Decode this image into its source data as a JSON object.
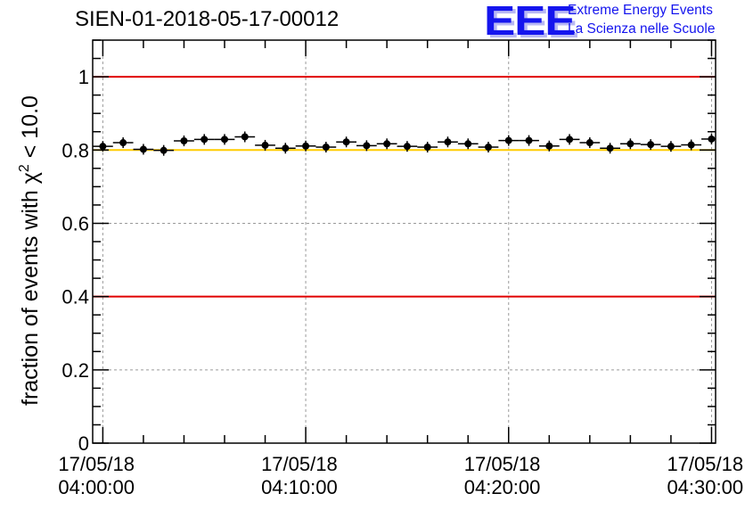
{
  "header": {
    "title": "SIEN-01-2018-05-17-00012",
    "logo_mark": "EEE",
    "logo_line1": "Extreme Energy Events",
    "logo_line2": "La Scienza nelle Scuole"
  },
  "chart_data": {
    "type": "scatter",
    "title": "SIEN-01-2018-05-17-00012",
    "ylabel": "fraction of events with χ² < 10.0",
    "ylabel_main": "fraction of events with ",
    "ylabel_symbol": "χ",
    "ylabel_sup": "2",
    "ylabel_tail": " < 10.0",
    "xlabel": "",
    "ylim": [
      0,
      1.1
    ],
    "xlim_minutes": [
      -0.5,
      30.2
    ],
    "grid": true,
    "y_ticks": [
      0,
      0.2,
      0.4,
      0.6,
      0.8,
      1
    ],
    "y_tick_labels": [
      "0",
      "0.2",
      "0.4",
      "0.6",
      "0.8",
      "1"
    ],
    "x_ticks": [
      {
        "minute": 0,
        "date": "17/05/18",
        "time": "04:00:00"
      },
      {
        "minute": 10,
        "date": "17/05/18",
        "time": "04:10:00"
      },
      {
        "minute": 20,
        "date": "17/05/18",
        "time": "04:20:00"
      },
      {
        "minute": 30,
        "date": "17/05/18",
        "time": "04:30:00"
      }
    ],
    "reference_lines": [
      {
        "y": 1.0,
        "color": "#e00000"
      },
      {
        "y": 0.8,
        "color": "#ffcc00"
      },
      {
        "y": 0.4,
        "color": "#e00000"
      }
    ],
    "series": [
      {
        "marker_color": "#000000",
        "points": [
          {
            "minute": 0.0,
            "y": 0.81
          },
          {
            "minute": 1.0,
            "y": 0.82
          },
          {
            "minute": 2.0,
            "y": 0.802
          },
          {
            "minute": 3.0,
            "y": 0.799
          },
          {
            "minute": 4.0,
            "y": 0.825
          },
          {
            "minute": 5.0,
            "y": 0.829
          },
          {
            "minute": 6.0,
            "y": 0.829
          },
          {
            "minute": 7.0,
            "y": 0.836
          },
          {
            "minute": 8.0,
            "y": 0.813
          },
          {
            "minute": 9.0,
            "y": 0.805
          },
          {
            "minute": 10.0,
            "y": 0.811
          },
          {
            "minute": 11.0,
            "y": 0.808
          },
          {
            "minute": 12.0,
            "y": 0.822
          },
          {
            "minute": 13.0,
            "y": 0.812
          },
          {
            "minute": 14.0,
            "y": 0.817
          },
          {
            "minute": 15.0,
            "y": 0.81
          },
          {
            "minute": 16.0,
            "y": 0.808
          },
          {
            "minute": 17.0,
            "y": 0.822
          },
          {
            "minute": 18.0,
            "y": 0.817
          },
          {
            "minute": 19.0,
            "y": 0.808
          },
          {
            "minute": 20.0,
            "y": 0.826
          },
          {
            "minute": 21.0,
            "y": 0.826
          },
          {
            "minute": 22.0,
            "y": 0.811
          },
          {
            "minute": 23.0,
            "y": 0.829
          },
          {
            "minute": 24.0,
            "y": 0.82
          },
          {
            "minute": 25.0,
            "y": 0.805
          },
          {
            "minute": 26.0,
            "y": 0.817
          },
          {
            "minute": 27.0,
            "y": 0.815
          },
          {
            "minute": 28.0,
            "y": 0.81
          },
          {
            "minute": 29.0,
            "y": 0.814
          },
          {
            "minute": 30.0,
            "y": 0.83
          }
        ]
      }
    ]
  }
}
